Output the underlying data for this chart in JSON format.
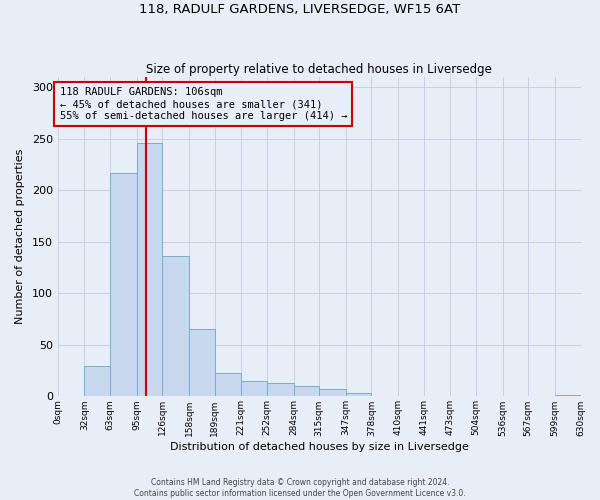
{
  "title": "118, RADULF GARDENS, LIVERSEDGE, WF15 6AT",
  "subtitle": "Size of property relative to detached houses in Liversedge",
  "xlabel": "Distribution of detached houses by size in Liversedge",
  "ylabel": "Number of detached properties",
  "bar_color": "#c8d8ee",
  "bar_edge_color": "#7aabce",
  "background_color": "#e8eef8",
  "grid_color": "#c0cce0",
  "bin_edges": [
    0,
    32,
    63,
    95,
    126,
    158,
    189,
    221,
    252,
    284,
    315,
    347,
    378,
    410,
    441,
    473,
    504,
    536,
    567,
    599,
    630
  ],
  "bin_labels": [
    "0sqm",
    "32sqm",
    "63sqm",
    "95sqm",
    "126sqm",
    "158sqm",
    "189sqm",
    "221sqm",
    "252sqm",
    "284sqm",
    "315sqm",
    "347sqm",
    "378sqm",
    "410sqm",
    "441sqm",
    "473sqm",
    "504sqm",
    "536sqm",
    "567sqm",
    "599sqm",
    "630sqm"
  ],
  "counts": [
    0,
    30,
    217,
    246,
    136,
    65,
    23,
    15,
    13,
    10,
    7,
    3,
    0,
    0,
    0,
    0,
    0,
    0,
    0,
    1
  ],
  "ylim": [
    0,
    310
  ],
  "yticks": [
    0,
    50,
    100,
    150,
    200,
    250,
    300
  ],
  "property_size": 106,
  "property_label": "118 RADULF GARDENS: 106sqm",
  "annotation_line1": "← 45% of detached houses are smaller (341)",
  "annotation_line2": "55% of semi-detached houses are larger (414) →",
  "vline_color": "#cc0000",
  "box_edge_color": "#cc0000",
  "footer_line1": "Contains HM Land Registry data © Crown copyright and database right 2024.",
  "footer_line2": "Contains public sector information licensed under the Open Government Licence v3.0."
}
